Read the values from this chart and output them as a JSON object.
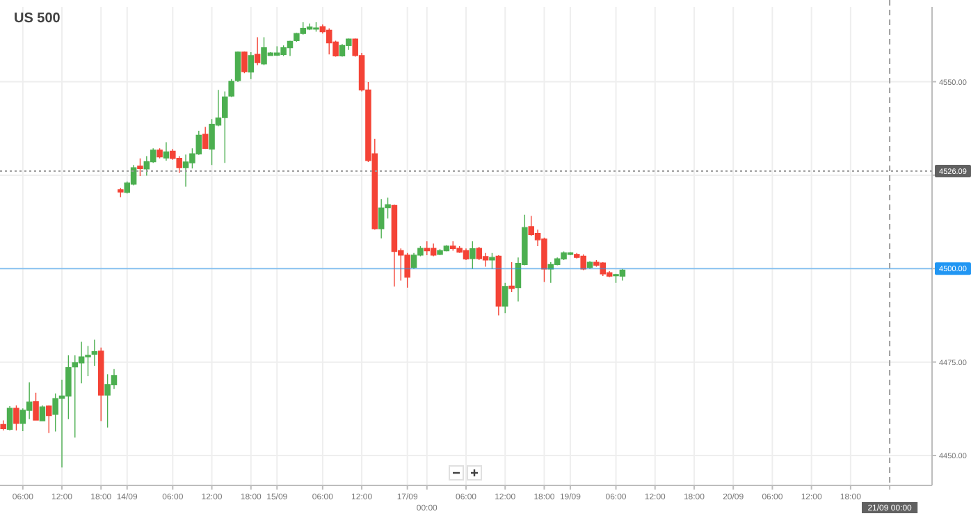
{
  "chart_data": {
    "type": "candlestick",
    "title": "US 500",
    "ylim": [
      4442,
      4570
    ],
    "categories": [
      null,
      null,
      null,
      "06:00",
      null,
      null,
      null,
      null,
      null,
      "12:00",
      null,
      null,
      null,
      null,
      null,
      "18:00",
      null,
      null,
      null,
      "14/09",
      null,
      null,
      null,
      null,
      null,
      null,
      "06:00",
      null,
      null,
      null,
      null,
      null,
      "12:00",
      null,
      null,
      null,
      null,
      null,
      "18:00",
      null,
      null,
      null,
      "15/09",
      null,
      null,
      null,
      null,
      null,
      null,
      "06:00",
      null,
      null,
      null,
      null,
      null,
      "12:00",
      null,
      null,
      null,
      null,
      null,
      null,
      "17/09",
      null,
      null,
      "00:00",
      null,
      null,
      null,
      null,
      null,
      "06:00",
      null,
      null,
      null,
      null,
      null,
      "12:00",
      null,
      null,
      null,
      null,
      null,
      "18:00",
      null,
      null,
      null,
      "19/09",
      null,
      null,
      null,
      null,
      null,
      null,
      "06:00",
      null,
      null,
      null,
      null,
      null,
      "12:00",
      null,
      null,
      null,
      null,
      null,
      "18:00",
      null,
      null,
      null,
      null,
      null,
      "20/09",
      null,
      null,
      null,
      null,
      null,
      "06:00",
      null,
      null,
      null,
      null,
      null,
      "12:00",
      null,
      null,
      null,
      null,
      null,
      "18:00",
      null,
      null,
      null,
      null,
      null,
      "21/09 00:00",
      null,
      null,
      null,
      null,
      null,
      null
    ],
    "yticks": [
      {
        "value": 4450,
        "label": "4450.00"
      },
      {
        "value": 4475,
        "label": "4475.00"
      },
      {
        "value": 4500,
        "label": null
      },
      {
        "value": 4525,
        "label": null
      },
      {
        "value": 4550,
        "label": "4550.00"
      }
    ],
    "grid": true,
    "ref_lines": [
      {
        "axis": "y",
        "value": 4526.09,
        "label": "4526.09",
        "color": "#9e9e9e",
        "line_style": "dotted"
      },
      {
        "axis": "y",
        "value": 4500,
        "label": "4500.00",
        "color": "#2196f3",
        "line_style": "solid"
      },
      {
        "axis": "x",
        "value": "21/09 00:00",
        "color": "#9e9e9e",
        "line_style": "dashed"
      }
    ],
    "ohlc": [
      [
        4458.3,
        4459.4,
        4456.7,
        4457.2
      ],
      [
        4457.0,
        4463.2,
        4456.7,
        4462.6
      ],
      [
        4462.6,
        4463.4,
        4456.7,
        4458.6
      ],
      [
        4458.6,
        4462.6,
        4456.5,
        4462.1
      ],
      [
        4462.1,
        4469.6,
        4459.7,
        4464.3
      ],
      [
        4464.4,
        4466.8,
        4459.4,
        4459.5
      ],
      [
        4459.3,
        4463.4,
        4459.2,
        4463.0
      ],
      [
        4463.2,
        4463.4,
        4456.0,
        4460.7
      ],
      [
        4461.0,
        4466.6,
        4456.4,
        4465.2
      ],
      [
        4465.3,
        4470.3,
        4446.8,
        4465.9
      ],
      [
        4465.9,
        4476.8,
        4459.7,
        4473.5
      ],
      [
        4473.7,
        4476.8,
        4454.8,
        4474.8
      ],
      [
        4474.8,
        4480.4,
        4469.3,
        4476.4
      ],
      [
        4476.4,
        4479.3,
        4471.2,
        4476.8
      ],
      [
        4477.1,
        4481.0,
        4474.0,
        4477.8
      ],
      [
        4477.9,
        4478.9,
        4459.2,
        4466.2
      ],
      [
        4466.2,
        4471.7,
        4457.5,
        4469.0
      ],
      [
        4468.9,
        4473.1,
        4467.8,
        4471.4
      ],
      [
        4521.1,
        4521.6,
        4519.1,
        4520.5
      ],
      [
        4520.4,
        4523.3,
        4520.1,
        4522.9
      ],
      [
        4522.6,
        4527.7,
        4522.3,
        4527.0
      ],
      [
        4527.4,
        4529.5,
        4524.8,
        4526.8
      ],
      [
        4526.7,
        4530.1,
        4524.9,
        4528.6
      ],
      [
        4528.6,
        4532.2,
        4528.3,
        4531.7
      ],
      [
        4531.7,
        4532.2,
        4529.5,
        4529.9
      ],
      [
        4529.6,
        4533.8,
        4528.9,
        4531.2
      ],
      [
        4531.4,
        4532.0,
        4529.1,
        4529.5
      ],
      [
        4529.5,
        4530.1,
        4525.6,
        4527.0
      ],
      [
        4527.0,
        4530.5,
        4521.9,
        4528.5
      ],
      [
        4528.3,
        4532.2,
        4526.8,
        4530.7
      ],
      [
        4530.7,
        4536.9,
        4530.4,
        4535.7
      ],
      [
        4535.9,
        4537.9,
        4532.0,
        4532.2
      ],
      [
        4532.0,
        4540.0,
        4527.7,
        4538.6
      ],
      [
        4538.4,
        4547.8,
        4538.1,
        4540.3
      ],
      [
        4540.4,
        4547.4,
        4528.3,
        4545.9
      ],
      [
        4546.2,
        4550.7,
        4545.9,
        4550.1
      ],
      [
        4550.3,
        4558.1,
        4549.9,
        4557.9
      ],
      [
        4557.9,
        4558.1,
        4552.3,
        4552.7
      ],
      [
        4552.6,
        4557.9,
        4550.7,
        4557.0
      ],
      [
        4557.3,
        4561.9,
        4554.4,
        4555.1
      ],
      [
        4554.8,
        4561.9,
        4554.4,
        4559.1
      ],
      [
        4557.0,
        4557.9,
        4556.9,
        4557.7
      ],
      [
        4557.1,
        4559.5,
        4556.9,
        4557.7
      ],
      [
        4557.3,
        4559.7,
        4556.9,
        4559.1
      ],
      [
        4559.1,
        4561.0,
        4556.9,
        4560.8
      ],
      [
        4561.0,
        4563.1,
        4560.7,
        4562.9
      ],
      [
        4562.9,
        4565.9,
        4562.6,
        4564.3
      ],
      [
        4564.1,
        4565.6,
        4563.8,
        4564.6
      ],
      [
        4564.2,
        4565.9,
        4563.4,
        4564.4
      ],
      [
        4564.7,
        4565.3,
        4562.9,
        4563.4
      ],
      [
        4563.8,
        4564.3,
        4557.3,
        4560.4
      ],
      [
        4560.6,
        4561.0,
        4556.7,
        4556.9
      ],
      [
        4556.9,
        4560.1,
        4556.7,
        4559.7
      ],
      [
        4559.7,
        4561.6,
        4558.5,
        4561.4
      ],
      [
        4561.4,
        4561.6,
        4556.7,
        4557.0
      ],
      [
        4557.0,
        4557.7,
        4547.4,
        4547.8
      ],
      [
        4547.8,
        4549.9,
        4528.5,
        4528.9
      ],
      [
        4530.7,
        4534.7,
        4510.4,
        4510.7
      ],
      [
        4510.7,
        4518.6,
        4508.1,
        4516.2
      ],
      [
        4516.3,
        4519.0,
        4513.4,
        4517.1
      ],
      [
        4516.9,
        4517.1,
        4495.2,
        4504.6
      ],
      [
        4504.8,
        4505.4,
        4496.8,
        4503.6
      ],
      [
        4503.6,
        4504.2,
        4494.9,
        4497.7
      ],
      [
        4500.3,
        4504.2,
        4499.9,
        4503.6
      ],
      [
        4503.6,
        4506.0,
        4503.3,
        4505.4
      ],
      [
        4505.4,
        4507.3,
        4503.6,
        4504.8
      ],
      [
        4505.4,
        4506.7,
        4503.3,
        4503.6
      ],
      [
        4503.8,
        4505.2,
        4503.6,
        4504.8
      ],
      [
        4504.8,
        4506.3,
        4504.6,
        4506.0
      ],
      [
        4506.0,
        4507.3,
        4504.8,
        4505.4
      ],
      [
        4505.4,
        4506.0,
        4504.2,
        4504.4
      ],
      [
        4504.8,
        4505.4,
        4502.3,
        4502.6
      ],
      [
        4502.7,
        4507.3,
        4499.9,
        4505.3
      ],
      [
        4505.4,
        4505.8,
        4502.3,
        4502.7
      ],
      [
        4503.2,
        4504.2,
        4500.5,
        4502.3
      ],
      [
        4502.3,
        4504.2,
        4499.9,
        4503.0
      ],
      [
        4503.3,
        4503.6,
        4487.5,
        4490.0
      ],
      [
        4490.0,
        4496.2,
        4488.1,
        4495.2
      ],
      [
        4495.3,
        4501.7,
        4493.7,
        4494.7
      ],
      [
        4494.9,
        4503.0,
        4491.2,
        4501.4
      ],
      [
        4501.1,
        4514.4,
        4500.9,
        4511.0
      ],
      [
        4511.2,
        4514.1,
        4508.8,
        4509.1
      ],
      [
        4509.4,
        4510.4,
        4506.0,
        4507.7
      ],
      [
        4507.9,
        4508.3,
        4496.4,
        4499.9
      ],
      [
        4499.9,
        4501.7,
        4496.2,
        4501.1
      ],
      [
        4501.1,
        4503.0,
        4500.9,
        4502.6
      ],
      [
        4502.6,
        4504.6,
        4502.3,
        4504.2
      ],
      [
        4503.8,
        4504.4,
        4503.6,
        4504.2
      ],
      [
        4503.8,
        4504.2,
        4502.7,
        4503.0
      ],
      [
        4503.3,
        4503.8,
        4499.6,
        4499.9
      ],
      [
        4500.3,
        4502.0,
        4499.9,
        4501.7
      ],
      [
        4501.7,
        4502.3,
        4500.5,
        4500.9
      ],
      [
        4501.5,
        4501.7,
        4498.0,
        4498.6
      ],
      [
        4498.9,
        4499.3,
        4497.7,
        4498.0
      ],
      [
        4498.1,
        4498.6,
        4496.2,
        4498.4
      ],
      [
        4498.0,
        4499.9,
        4496.8,
        4499.6
      ],
      null,
      null,
      null,
      null,
      null,
      null,
      null,
      null,
      null,
      null,
      null,
      null,
      null,
      null,
      null,
      null,
      null,
      null,
      null,
      null,
      null,
      null,
      null,
      null,
      null,
      null,
      null,
      null,
      null,
      null,
      null,
      null,
      null,
      null,
      null,
      null,
      null,
      null,
      null,
      null,
      null,
      null,
      null,
      null,
      null,
      null,
      null
    ],
    "colors": [
      "#f44336",
      "#4caf50",
      "#f44336",
      "#4caf50",
      "#4caf50",
      "#f44336",
      "#4caf50",
      "#f44336",
      "#4caf50",
      "#4caf50",
      "#4caf50",
      "#4caf50",
      "#4caf50",
      "#4caf50",
      "#4caf50",
      "#f44336",
      "#4caf50",
      "#4caf50",
      "#f44336",
      "#4caf50",
      "#4caf50",
      "#f44336",
      "#4caf50",
      "#4caf50",
      "#f44336",
      "#4caf50",
      "#f44336",
      "#f44336",
      "#4caf50",
      "#4caf50",
      "#4caf50",
      "#f44336",
      "#4caf50",
      "#4caf50",
      "#4caf50",
      "#4caf50",
      "#4caf50",
      "#f44336",
      "#4caf50",
      "#f44336",
      "#4caf50",
      "#4caf50",
      "#4caf50",
      "#4caf50",
      "#4caf50",
      "#4caf50",
      "#4caf50",
      "#4caf50",
      "#4caf50",
      "#f44336",
      "#f44336",
      "#f44336",
      "#4caf50",
      "#4caf50",
      "#f44336",
      "#f44336",
      "#f44336",
      "#f44336",
      "#4caf50",
      "#4caf50",
      "#f44336",
      "#f44336",
      "#f44336",
      "#4caf50",
      "#4caf50",
      "#f44336",
      "#f44336",
      "#4caf50",
      "#4caf50",
      "#f44336",
      "#f44336",
      "#f44336",
      "#4caf50",
      "#f44336",
      "#f44336",
      "#4caf50",
      "#f44336",
      "#4caf50",
      "#f44336",
      "#4caf50",
      "#4caf50",
      "#f44336",
      "#f44336",
      "#f44336",
      "#4caf50",
      "#4caf50",
      "#4caf50",
      "#4caf50",
      "#f44336",
      "#f44336",
      "#4caf50",
      "#f44336",
      "#f44336",
      "#f44336",
      "#4caf50",
      "#4caf50",
      null,
      null,
      null,
      null,
      null,
      null,
      null,
      null,
      null,
      null,
      null,
      null,
      null,
      null,
      null,
      null,
      null,
      null,
      null,
      null,
      null,
      null,
      null,
      null,
      null,
      null,
      null,
      null,
      null,
      null,
      null,
      null,
      null,
      null,
      null,
      null,
      null,
      null,
      null,
      null,
      null,
      null,
      null,
      null,
      null,
      null,
      null
    ]
  }
}
